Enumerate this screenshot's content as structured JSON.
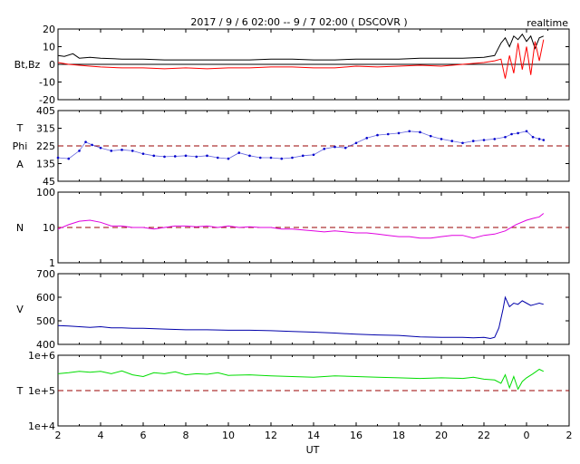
{
  "title": "2017 / 9 / 6  02:00 -- 9 / 7  02:00 ( DSCOVR )",
  "corner_label": "realtime",
  "xlabel": "UT",
  "colors": {
    "bt": "#000000",
    "bz": "#ff0000",
    "phi": "#0000cc",
    "density": "#e000e0",
    "speed": "#0000aa",
    "temperature": "#00dd00",
    "reference": "#990000"
  },
  "chart_data": [
    {
      "id": "magnetic",
      "type": "line",
      "ylabel": "Bt,Bz",
      "ylim": [
        -20,
        20
      ],
      "yticks": [
        "20",
        "10",
        "0",
        "-10",
        "-20"
      ],
      "xticks": [
        "2",
        "4",
        "6",
        "8",
        "10",
        "12",
        "14",
        "16",
        "18",
        "20",
        "22",
        "0",
        "2"
      ],
      "series": [
        {
          "key": "bt",
          "x": [
            2,
            2.3,
            2.7,
            3.0,
            3.5,
            4.0,
            5,
            6,
            7,
            8,
            9,
            10,
            11,
            12,
            13,
            14,
            15,
            16,
            17,
            18,
            19,
            20,
            21,
            22,
            22.5,
            22.8,
            23.0,
            23.2,
            23.4,
            23.6,
            23.8,
            24.0,
            24.2,
            24.4,
            24.6,
            24.8
          ],
          "y": [
            5,
            4.5,
            6,
            3.5,
            4,
            3.5,
            3,
            3,
            2.5,
            2.5,
            2.5,
            2.5,
            2.5,
            3,
            3,
            2.5,
            2.5,
            3,
            3,
            3,
            3.5,
            3.5,
            3.5,
            4,
            5,
            12,
            15,
            10,
            16,
            14,
            17,
            13,
            16,
            9,
            15,
            16
          ]
        },
        {
          "key": "bz",
          "x": [
            2,
            2.5,
            3,
            3.5,
            4,
            5,
            6,
            7,
            8,
            9,
            10,
            11,
            12,
            13,
            14,
            15,
            16,
            17,
            18,
            19,
            20,
            21,
            22,
            22.5,
            22.8,
            23.0,
            23.2,
            23.4,
            23.6,
            23.8,
            24.0,
            24.2,
            24.4,
            24.6,
            24.8
          ],
          "y": [
            1,
            0,
            -0.5,
            -1,
            -1.5,
            -2,
            -2,
            -2.5,
            -2,
            -2.5,
            -2,
            -2,
            -1.5,
            -1.5,
            -2,
            -2,
            -1,
            -1.5,
            -1,
            -0.5,
            -1,
            0,
            1,
            2,
            3,
            -8,
            5,
            -5,
            12,
            -3,
            10,
            -6,
            13,
            2,
            14
          ]
        }
      ],
      "reference_line": 0
    },
    {
      "id": "phi",
      "type": "scatter",
      "ylabel_lines": [
        "T",
        "Phi",
        "A"
      ],
      "ylim": [
        45,
        405
      ],
      "yticks": [
        "405",
        "315",
        "225",
        "135",
        "45"
      ],
      "xticks": [
        "2",
        "4",
        "6",
        "8",
        "10",
        "12",
        "14",
        "16",
        "18",
        "20",
        "22",
        "0",
        "2"
      ],
      "series": [
        {
          "key": "phi",
          "x": [
            2,
            2.5,
            3,
            3.3,
            3.6,
            4,
            4.5,
            5,
            5.5,
            6,
            6.5,
            7,
            7.5,
            8,
            8.5,
            9,
            9.5,
            10,
            10.5,
            11,
            11.5,
            12,
            12.5,
            13,
            13.5,
            14,
            14.5,
            15,
            15.5,
            16,
            16.5,
            17,
            17.5,
            18,
            18.5,
            19,
            19.5,
            20,
            20.5,
            21,
            21.5,
            22,
            22.5,
            23,
            23.3,
            23.6,
            24,
            24.3,
            24.6,
            24.8
          ],
          "y": [
            165,
            160,
            200,
            245,
            230,
            215,
            200,
            205,
            200,
            185,
            175,
            170,
            172,
            175,
            170,
            175,
            165,
            160,
            190,
            175,
            165,
            165,
            160,
            165,
            175,
            180,
            210,
            220,
            215,
            240,
            265,
            280,
            285,
            290,
            300,
            295,
            275,
            260,
            250,
            240,
            250,
            255,
            260,
            270,
            285,
            290,
            300,
            270,
            260,
            255
          ]
        }
      ],
      "reference_line": 225
    },
    {
      "id": "density",
      "type": "line",
      "ylabel": "N",
      "scale": "log",
      "ylim": [
        1,
        100
      ],
      "yticks": [
        "100",
        "10",
        "1"
      ],
      "xticks": [
        "2",
        "4",
        "6",
        "8",
        "10",
        "12",
        "14",
        "16",
        "18",
        "20",
        "22",
        "0",
        "2"
      ],
      "series": [
        {
          "key": "density",
          "x": [
            2,
            2.5,
            3,
            3.5,
            4,
            4.5,
            5,
            5.5,
            6,
            6.5,
            7,
            7.5,
            8,
            8.5,
            9,
            9.5,
            10,
            10.5,
            11,
            11.5,
            12,
            12.5,
            13,
            13.5,
            14,
            14.5,
            15,
            15.5,
            16,
            16.5,
            17,
            17.5,
            18,
            18.5,
            19,
            19.5,
            20,
            20.5,
            21,
            21.5,
            22,
            22.5,
            23,
            23.5,
            24,
            24.3,
            24.6,
            24.8
          ],
          "y": [
            9,
            12,
            15,
            16,
            14,
            11,
            11,
            10,
            10,
            9,
            10,
            11,
            11,
            10.5,
            11,
            10,
            11,
            10,
            10.5,
            10,
            10,
            9,
            9,
            8.5,
            8,
            7.5,
            8,
            7.5,
            7,
            7,
            6.5,
            6,
            5.5,
            5.5,
            5,
            5,
            5.5,
            6,
            6,
            5,
            6,
            6.5,
            8,
            12,
            16,
            18,
            20,
            25
          ]
        }
      ],
      "reference_line": 10
    },
    {
      "id": "speed",
      "type": "line",
      "ylabel": "V",
      "ylim": [
        400,
        700
      ],
      "yticks": [
        "700",
        "600",
        "500",
        "400"
      ],
      "xticks": [
        "2",
        "4",
        "6",
        "8",
        "10",
        "12",
        "14",
        "16",
        "18",
        "20",
        "22",
        "0",
        "2"
      ],
      "series": [
        {
          "key": "speed",
          "x": [
            2,
            2.5,
            3,
            3.5,
            4,
            4.5,
            5,
            5.5,
            6,
            7,
            8,
            9,
            10,
            11,
            12,
            13,
            14,
            15,
            16,
            17,
            18,
            19,
            20,
            21,
            21.5,
            22,
            22.3,
            22.5,
            22.7,
            22.9,
            23.0,
            23.2,
            23.4,
            23.6,
            23.8,
            24.0,
            24.2,
            24.4,
            24.6,
            24.8
          ],
          "y": [
            480,
            478,
            475,
            472,
            475,
            470,
            470,
            468,
            468,
            465,
            462,
            462,
            460,
            460,
            458,
            455,
            452,
            448,
            443,
            440,
            438,
            432,
            430,
            430,
            428,
            430,
            425,
            430,
            470,
            550,
            600,
            560,
            575,
            570,
            585,
            575,
            565,
            570,
            575,
            570
          ]
        }
      ]
    },
    {
      "id": "temperature",
      "type": "line",
      "ylabel": "T",
      "scale": "log",
      "ylim": [
        10000,
        1000000
      ],
      "yticks": [
        "1e+6",
        "1e+5",
        "1e+4"
      ],
      "xticks": [
        "2",
        "4",
        "6",
        "8",
        "10",
        "12",
        "14",
        "16",
        "18",
        "20",
        "22",
        "0",
        "2"
      ],
      "series": [
        {
          "key": "temperature",
          "x": [
            2,
            2.5,
            3,
            3.5,
            4,
            4.5,
            5,
            5.5,
            6,
            6.5,
            7,
            7.5,
            8,
            8.5,
            9,
            9.5,
            10,
            11,
            12,
            13,
            14,
            15,
            16,
            17,
            18,
            19,
            20,
            21,
            21.5,
            22,
            22.5,
            22.8,
            23.0,
            23.2,
            23.4,
            23.6,
            23.8,
            24.0,
            24.3,
            24.6,
            24.8
          ],
          "y": [
            300000,
            320000,
            350000,
            330000,
            350000,
            300000,
            360000,
            280000,
            250000,
            320000,
            300000,
            340000,
            280000,
            300000,
            290000,
            320000,
            270000,
            280000,
            260000,
            250000,
            240000,
            260000,
            250000,
            240000,
            230000,
            220000,
            230000,
            220000,
            240000,
            210000,
            200000,
            160000,
            280000,
            120000,
            250000,
            110000,
            180000,
            230000,
            300000,
            400000,
            350000
          ]
        }
      ],
      "reference_line": 100000
    }
  ]
}
